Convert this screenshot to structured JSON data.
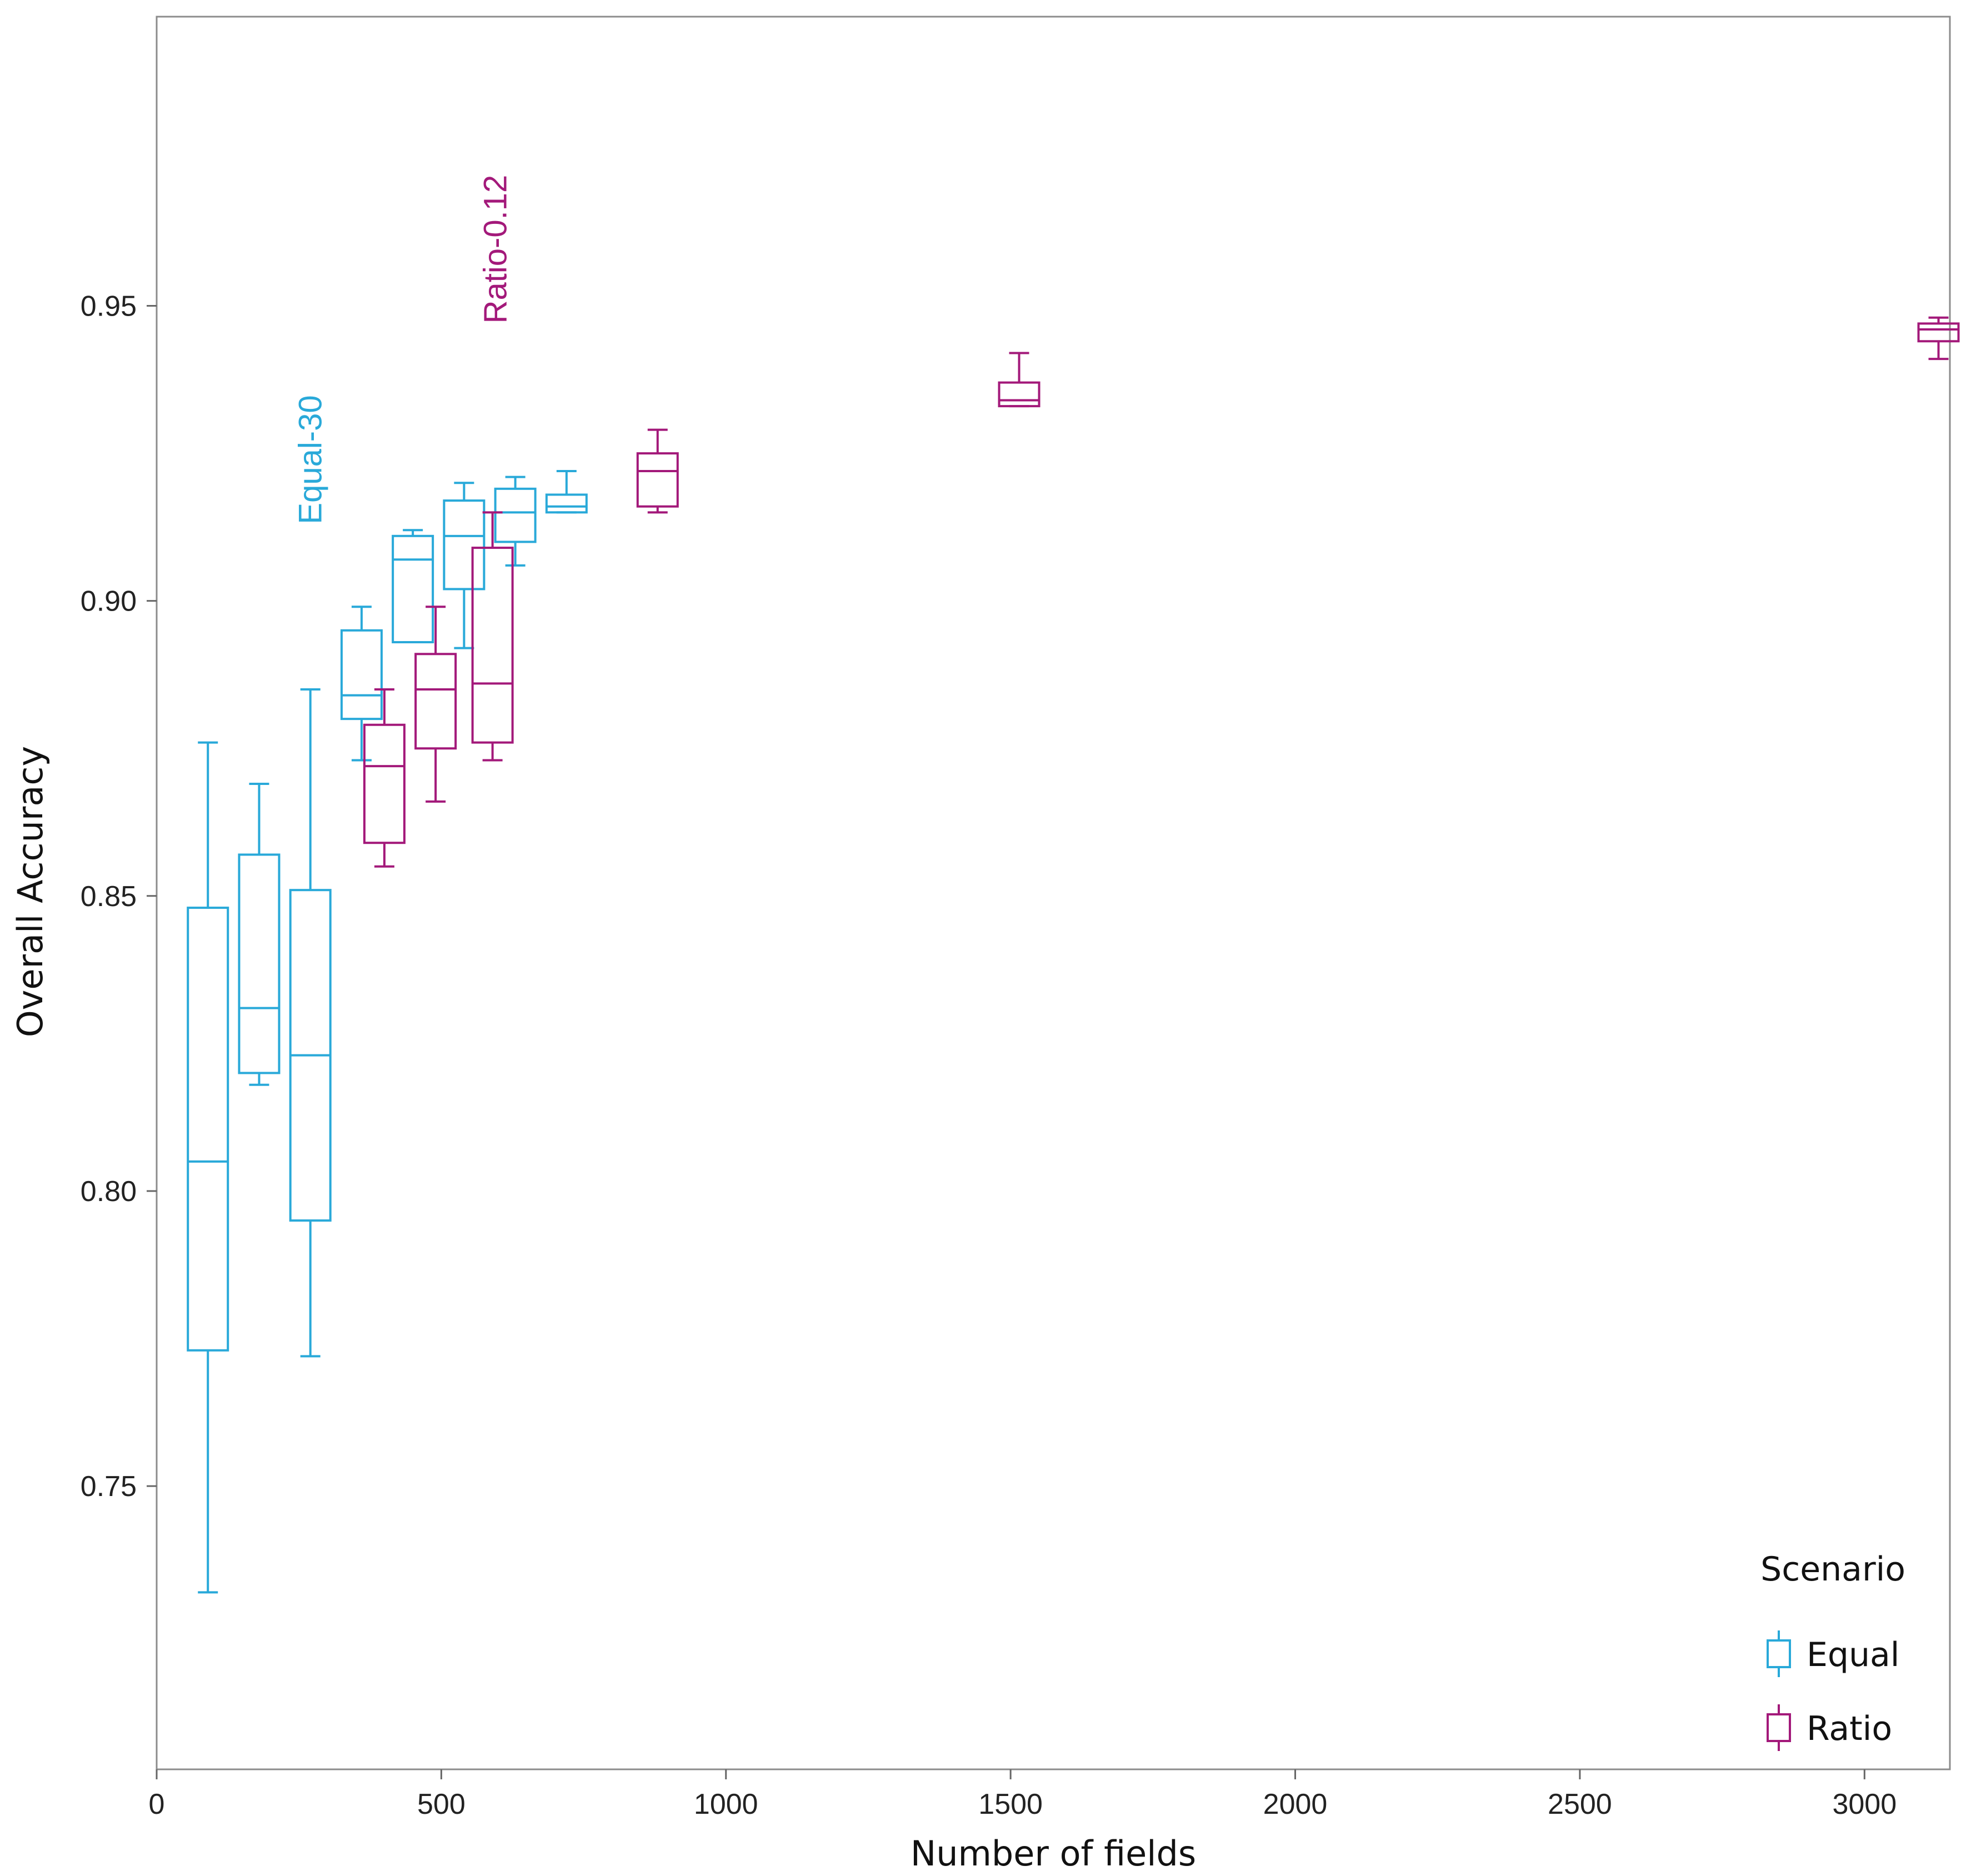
{
  "chart_data": {
    "type": "boxplot",
    "title": "",
    "xlabel": "Number of fields",
    "ylabel": "Overall Accuracy",
    "xlim": [
      0,
      3150
    ],
    "ylim": [
      0.702,
      0.999
    ],
    "xticks": [
      0,
      500,
      1000,
      1500,
      2000,
      2500,
      3000
    ],
    "xtick_labels": [
      "0",
      "500",
      "1000",
      "1500",
      "2000",
      "2500",
      "3000"
    ],
    "yticks": [
      0.75,
      0.8,
      0.85,
      0.9,
      0.95
    ],
    "ytick_labels": [
      "0.75",
      "0.80",
      "0.85",
      "0.90",
      "0.95"
    ],
    "colors": {
      "Equal": "#29a9d9",
      "Ratio": "#a3197a"
    },
    "legend": {
      "title": "Scenario",
      "position": "bottom-right",
      "entries": [
        "Equal",
        "Ratio"
      ]
    },
    "annotations": [
      {
        "text": "Equal-30",
        "series": "Equal",
        "x": 270,
        "y": 0.913,
        "rotation": -90
      },
      {
        "text": "Ratio-0.12",
        "series": "Ratio",
        "x": 595,
        "y": 0.947,
        "rotation": -90
      }
    ],
    "series": [
      {
        "name": "Equal",
        "boxes": [
          {
            "x": 90,
            "min": 0.732,
            "q1": 0.773,
            "median": 0.805,
            "q3": 0.848,
            "max": 0.876
          },
          {
            "x": 180,
            "min": 0.818,
            "q1": 0.82,
            "median": 0.831,
            "q3": 0.857,
            "max": 0.869
          },
          {
            "x": 270,
            "min": 0.772,
            "q1": 0.795,
            "median": 0.823,
            "q3": 0.851,
            "max": 0.885
          },
          {
            "x": 360,
            "min": 0.873,
            "q1": 0.88,
            "median": 0.884,
            "q3": 0.895,
            "max": 0.899
          },
          {
            "x": 450,
            "min": 0.893,
            "q1": 0.893,
            "median": 0.907,
            "q3": 0.911,
            "max": 0.912
          },
          {
            "x": 540,
            "min": 0.892,
            "q1": 0.902,
            "median": 0.911,
            "q3": 0.917,
            "max": 0.92
          },
          {
            "x": 630,
            "min": 0.906,
            "q1": 0.91,
            "median": 0.915,
            "q3": 0.919,
            "max": 0.921
          },
          {
            "x": 720,
            "min": 0.915,
            "q1": 0.915,
            "median": 0.916,
            "q3": 0.918,
            "max": 0.922
          }
        ]
      },
      {
        "name": "Ratio",
        "boxes": [
          {
            "x": 400,
            "min": 0.855,
            "q1": 0.859,
            "median": 0.872,
            "q3": 0.879,
            "max": 0.885
          },
          {
            "x": 490,
            "min": 0.866,
            "q1": 0.875,
            "median": 0.885,
            "q3": 0.891,
            "max": 0.899
          },
          {
            "x": 590,
            "min": 0.873,
            "q1": 0.876,
            "median": 0.886,
            "q3": 0.909,
            "max": 0.915
          },
          {
            "x": 880,
            "min": 0.915,
            "q1": 0.916,
            "median": 0.922,
            "q3": 0.925,
            "max": 0.929
          },
          {
            "x": 1515,
            "min": 0.933,
            "q1": 0.933,
            "median": 0.934,
            "q3": 0.937,
            "max": 0.942
          },
          {
            "x": 3130,
            "min": 0.941,
            "q1": 0.944,
            "median": 0.946,
            "q3": 0.947,
            "max": 0.948
          }
        ]
      }
    ]
  }
}
